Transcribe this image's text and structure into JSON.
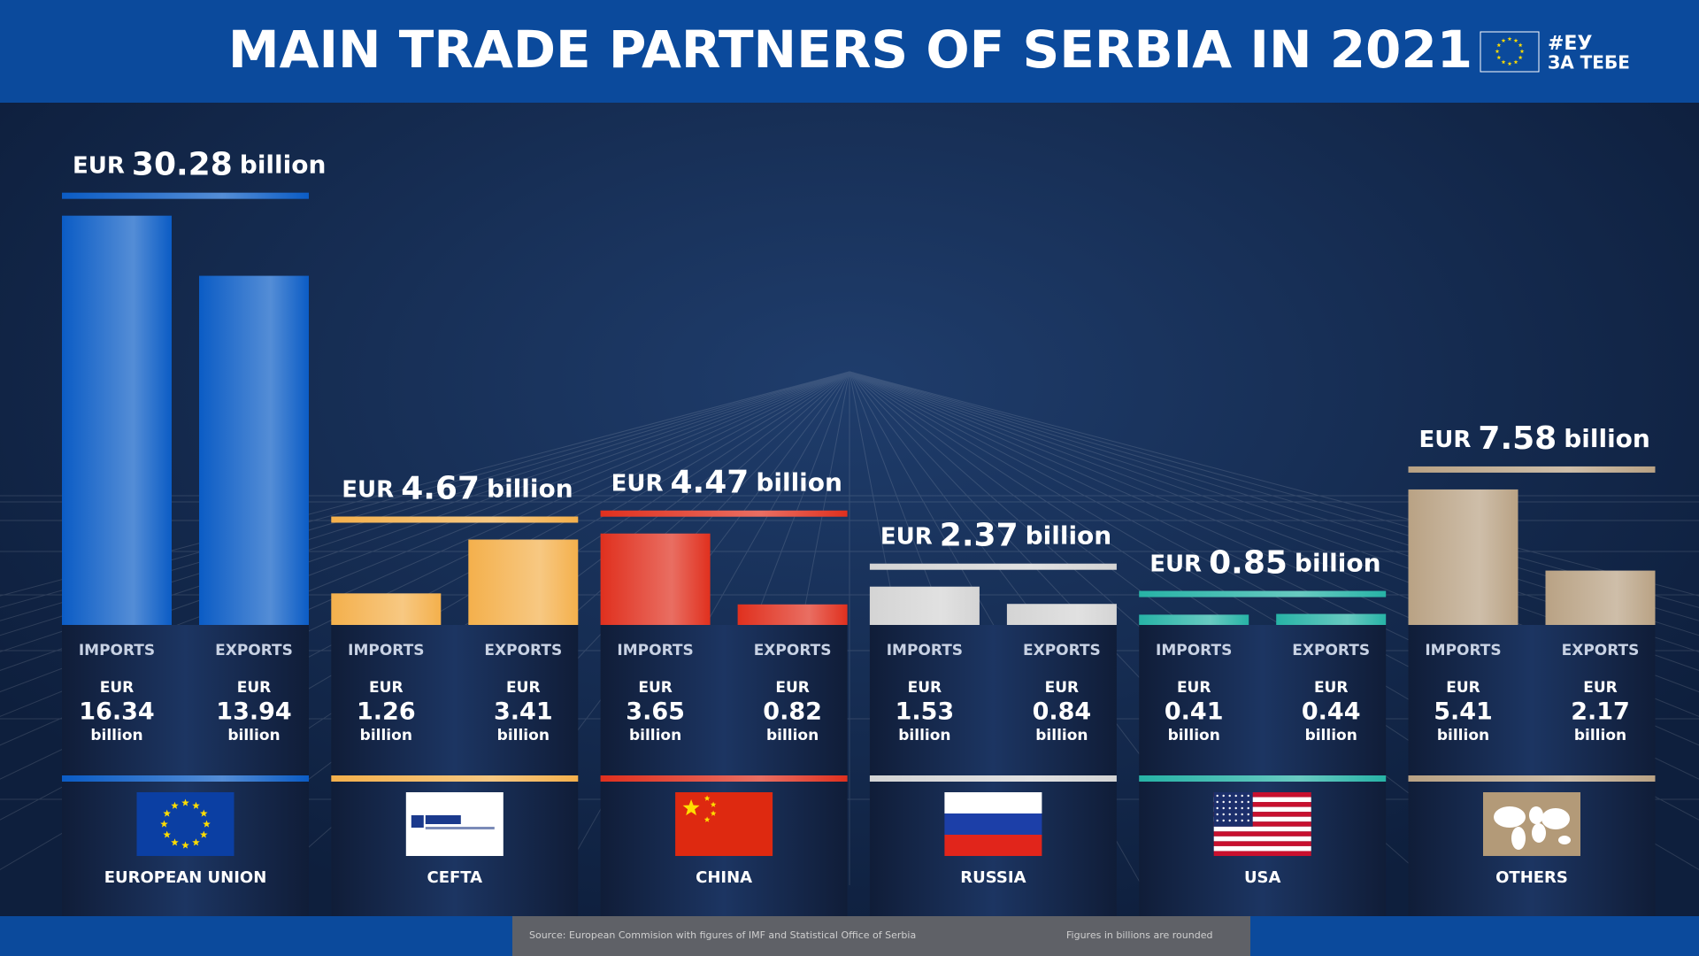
{
  "header": {
    "logo": [
      "#ЕУ",
      "ЗА ТЕБЕ"
    ]
  },
  "chart_data": {
    "type": "grouped-bar",
    "title": "MAIN TRADE PARTNERS OF SERBIA IN 2021",
    "categories": [
      "EUROPEAN UNION",
      "CEFTA",
      "CHINA",
      "RUSSIA",
      "USA",
      "OTHERS"
    ],
    "category_colors": [
      "#0b5cc5",
      "#f4b04c",
      "#e0301e",
      "#d4d4d4",
      "#27b3a6",
      "#b9a284"
    ],
    "series": [
      {
        "name": "IMPORTS",
        "values": [
          16.34,
          1.26,
          3.65,
          1.53,
          0.41,
          5.41
        ]
      },
      {
        "name": "EXPORTS",
        "values": [
          13.94,
          3.41,
          0.82,
          0.84,
          0.44,
          2.17
        ]
      }
    ],
    "totals": [
      30.28,
      4.67,
      4.47,
      2.37,
      0.85,
      7.58
    ],
    "currency": "EUR",
    "unit": "billion",
    "ylim": [
      0,
      17
    ],
    "source": "Source: European Commision with figures of IMF and Statistical Office of Serbia",
    "note": "Figures in billions are rounded"
  }
}
